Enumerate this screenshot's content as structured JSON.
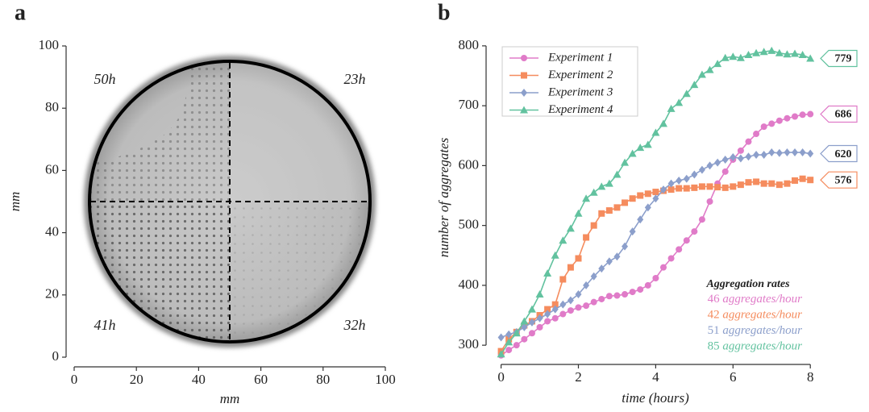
{
  "chart_data": [
    {
      "type": "image",
      "panel": "a",
      "xlabel": "mm",
      "ylabel": "mm",
      "xlim": [
        0,
        100
      ],
      "ylim": [
        0,
        100
      ],
      "xticks": [
        0,
        20,
        40,
        60,
        80,
        100
      ],
      "yticks": [
        0,
        20,
        40,
        60,
        80,
        100
      ],
      "annotations": [
        "50h",
        "23h",
        "41h",
        "32h"
      ]
    },
    {
      "type": "line",
      "panel": "b",
      "xlabel": "time (hours)",
      "ylabel": "number of aggregates",
      "xlim": [
        -0.2,
        8.1
      ],
      "ylim": [
        280,
        816
      ],
      "xticks": [
        0,
        2,
        4,
        6,
        8
      ],
      "yticks": [
        300,
        400,
        500,
        600,
        700,
        800
      ],
      "legend": "upper left",
      "rates_title": "Aggregation rates",
      "rate_unit": "aggregates/hour",
      "x": [
        0,
        0.2,
        0.4,
        0.6,
        0.8,
        1,
        1.2,
        1.4,
        1.6,
        1.8,
        2,
        2.2,
        2.4,
        2.6,
        2.8,
        3,
        3.2,
        3.4,
        3.6,
        3.8,
        4,
        4.2,
        4.4,
        4.6,
        4.8,
        5,
        5.2,
        5.4,
        5.6,
        5.8,
        6,
        6.2,
        6.4,
        6.6,
        6.8,
        7,
        7.2,
        7.4,
        7.6,
        7.8,
        8
      ],
      "series": [
        {
          "name": "Experiment 1",
          "color": "#e07bc8",
          "marker": "circle",
          "rate": 46,
          "values": [
            283,
            292,
            300,
            310,
            320,
            330,
            340,
            345,
            352,
            358,
            363,
            366,
            372,
            377,
            382,
            383,
            385,
            389,
            393,
            400,
            412,
            430,
            445,
            460,
            475,
            490,
            510,
            540,
            570,
            590,
            610,
            625,
            640,
            653,
            665,
            670,
            675,
            679,
            682,
            685,
            686
          ]
        },
        {
          "name": "Experiment 2",
          "color": "#f58c5e",
          "marker": "square",
          "rate": 42,
          "values": [
            290,
            310,
            322,
            333,
            340,
            350,
            360,
            368,
            410,
            430,
            445,
            480,
            500,
            520,
            525,
            530,
            538,
            545,
            550,
            553,
            556,
            558,
            560,
            562,
            562,
            563,
            565,
            565,
            564,
            563,
            565,
            568,
            572,
            573,
            570,
            570,
            568,
            570,
            575,
            578,
            576
          ]
        },
        {
          "name": "Experiment 3",
          "color": "#8c9fcb",
          "marker": "diamond",
          "rate": 51,
          "values": [
            313,
            318,
            322,
            330,
            338,
            345,
            352,
            360,
            368,
            375,
            385,
            400,
            415,
            428,
            440,
            448,
            465,
            490,
            510,
            530,
            545,
            560,
            570,
            575,
            578,
            585,
            593,
            600,
            605,
            610,
            614,
            612,
            615,
            618,
            618,
            622,
            621,
            622,
            622,
            622,
            620
          ]
        },
        {
          "name": "Experiment 4",
          "color": "#62c29f",
          "marker": "triangle",
          "rate": 85,
          "values": [
            285,
            305,
            320,
            340,
            360,
            385,
            420,
            450,
            475,
            495,
            520,
            545,
            555,
            565,
            570,
            585,
            605,
            620,
            630,
            635,
            655,
            670,
            695,
            705,
            720,
            735,
            752,
            760,
            770,
            780,
            782,
            780,
            785,
            788,
            790,
            792,
            788,
            786,
            787,
            785,
            779
          ]
        }
      ]
    }
  ]
}
